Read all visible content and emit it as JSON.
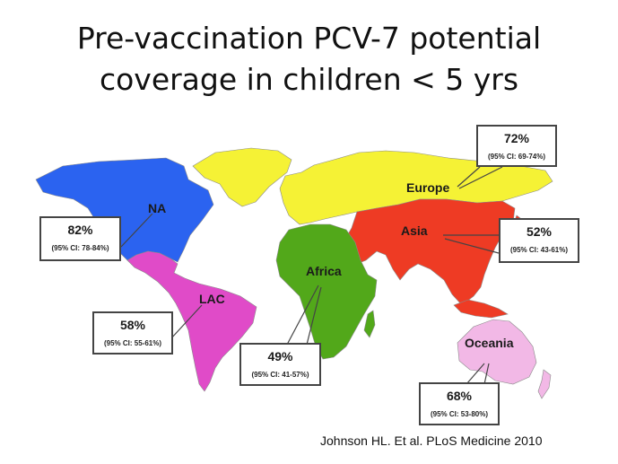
{
  "title": {
    "line1": "Pre-vaccination PCV-7 potential",
    "line2": "coverage in children < 5 yrs"
  },
  "colors": {
    "north_america": "#2b63f0",
    "latin_america": "#e04bc8",
    "europe": "#f5f235",
    "asia": "#ee3b24",
    "africa": "#52a81a",
    "oceania": "#f2b8e6",
    "callout_border": "#444444"
  },
  "regions": [
    {
      "key": "na",
      "label": "NA",
      "coverage": "82%",
      "ci": "(95% CI: 78-84%)"
    },
    {
      "key": "lac",
      "label": "LAC",
      "coverage": "58%",
      "ci": "(95% CI: 55-61%)"
    },
    {
      "key": "africa",
      "label": "Africa",
      "coverage": "49%",
      "ci": "(95% CI: 41-57%)"
    },
    {
      "key": "europe",
      "label": "Europe",
      "coverage": "72%",
      "ci": "(95% CI: 69-74%)"
    },
    {
      "key": "asia",
      "label": "Asia",
      "coverage": "52%",
      "ci": "(95% CI: 43-61%)"
    },
    {
      "key": "oceania",
      "label": "Oceania",
      "coverage": "68%",
      "ci": "(95% CI: 53-80%)"
    }
  ],
  "citation": "Johnson HL. Et al. PLoS Medicine 2010"
}
